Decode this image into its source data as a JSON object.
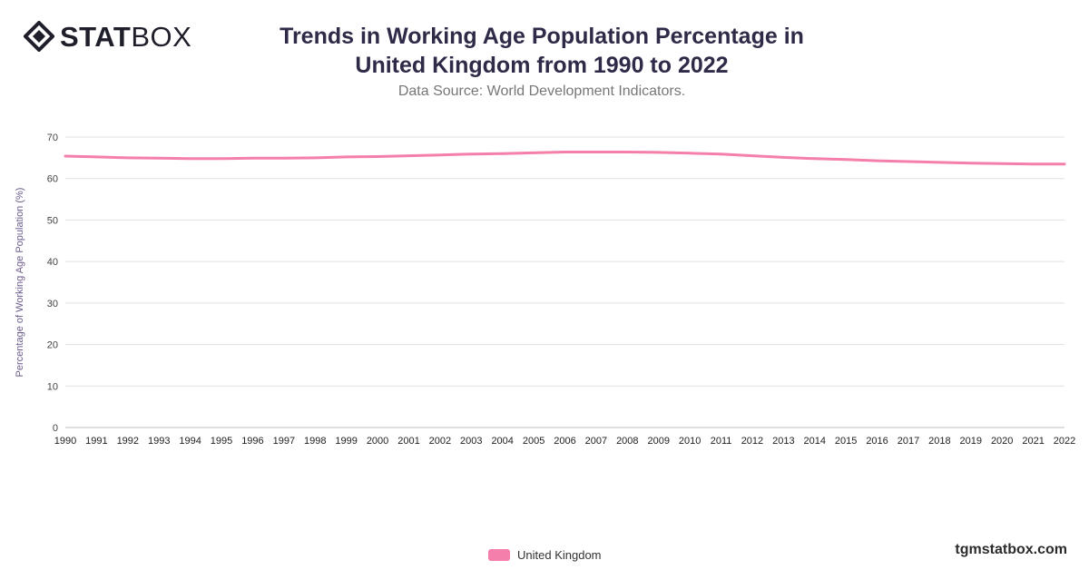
{
  "brand": {
    "logo_bold": "STAT",
    "logo_light": "BOX",
    "watermark": "tgmstatbox.com"
  },
  "header": {
    "title": "Trends in Working Age Population Percentage in United Kingdom from 1990 to 2022",
    "subtitle": "Data Source: World Development Indicators."
  },
  "colors": {
    "series": "#f47fab",
    "grid": "#e0e0e0",
    "axis_text": "#444444",
    "ylabel_text": "#6b5b8c"
  },
  "chart_data": {
    "type": "line",
    "title": "Trends in Working Age Population Percentage in United Kingdom from 1990 to 2022",
    "subtitle": "Data Source: World Development Indicators.",
    "xlabel": "",
    "ylabel": "Percentage of Working Age Population (%)",
    "ylim": [
      0,
      70
    ],
    "yticks": [
      0,
      10,
      20,
      30,
      40,
      50,
      60,
      70
    ],
    "grid": true,
    "legend_position": "bottom",
    "categories": [
      "1990",
      "1991",
      "1992",
      "1993",
      "1994",
      "1995",
      "1996",
      "1997",
      "1998",
      "1999",
      "2000",
      "2001",
      "2002",
      "2003",
      "2004",
      "2005",
      "2006",
      "2007",
      "2008",
      "2009",
      "2010",
      "2011",
      "2012",
      "2013",
      "2014",
      "2015",
      "2016",
      "2017",
      "2018",
      "2019",
      "2020",
      "2021",
      "2022"
    ],
    "series": [
      {
        "name": "United Kingdom",
        "color": "#f47fab",
        "values": [
          65.4,
          65.2,
          65.0,
          64.9,
          64.8,
          64.8,
          64.9,
          64.9,
          65.0,
          65.2,
          65.3,
          65.5,
          65.7,
          65.9,
          66.0,
          66.2,
          66.4,
          66.4,
          66.4,
          66.3,
          66.1,
          65.9,
          65.5,
          65.1,
          64.8,
          64.6,
          64.3,
          64.1,
          63.9,
          63.7,
          63.6,
          63.5,
          63.5
        ]
      }
    ]
  }
}
